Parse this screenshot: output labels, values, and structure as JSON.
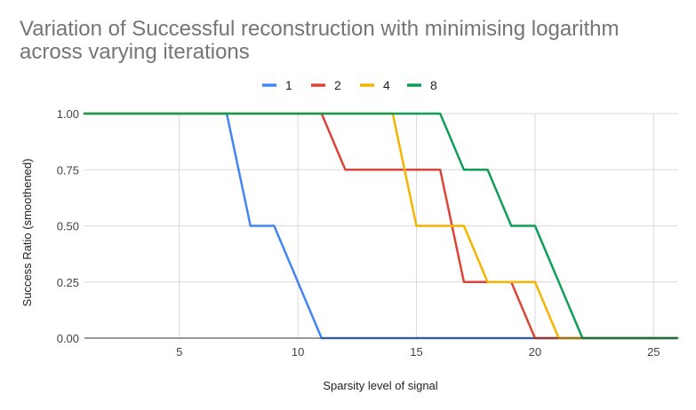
{
  "chart_data": {
    "type": "line",
    "title": "Variation of Successful reconstruction with minimising logarithm across varying iterations",
    "xlabel": "Sparsity level of signal",
    "ylabel": "Success Ratio (smoothened)",
    "xlim": [
      1,
      26
    ],
    "ylim": [
      0,
      1
    ],
    "xticks": [
      5,
      10,
      15,
      20,
      25
    ],
    "yticks": [
      "0.00",
      "0.25",
      "0.50",
      "0.75",
      "1.00"
    ],
    "grid": true,
    "legend": "top",
    "series": [
      {
        "name": "1",
        "color": "#4285f4",
        "points": [
          [
            1,
            1
          ],
          [
            7,
            1
          ],
          [
            8,
            0.5
          ],
          [
            9,
            0.5
          ],
          [
            11,
            0
          ],
          [
            26,
            0
          ]
        ]
      },
      {
        "name": "2",
        "color": "#db4437",
        "points": [
          [
            1,
            1
          ],
          [
            11,
            1
          ],
          [
            12,
            0.75
          ],
          [
            16,
            0.75
          ],
          [
            17,
            0.25
          ],
          [
            19,
            0.25
          ],
          [
            20,
            0
          ],
          [
            26,
            0
          ]
        ]
      },
      {
        "name": "4",
        "color": "#f4b400",
        "points": [
          [
            1,
            1
          ],
          [
            14,
            1
          ],
          [
            15,
            0.5
          ],
          [
            17,
            0.5
          ],
          [
            18,
            0.25
          ],
          [
            20,
            0.25
          ],
          [
            21,
            0
          ],
          [
            26,
            0
          ]
        ]
      },
      {
        "name": "8",
        "color": "#0f9d58",
        "points": [
          [
            1,
            1
          ],
          [
            16,
            1
          ],
          [
            17,
            0.75
          ],
          [
            18,
            0.75
          ],
          [
            19,
            0.5
          ],
          [
            20,
            0.5
          ],
          [
            22,
            0
          ],
          [
            26,
            0
          ]
        ]
      }
    ]
  }
}
